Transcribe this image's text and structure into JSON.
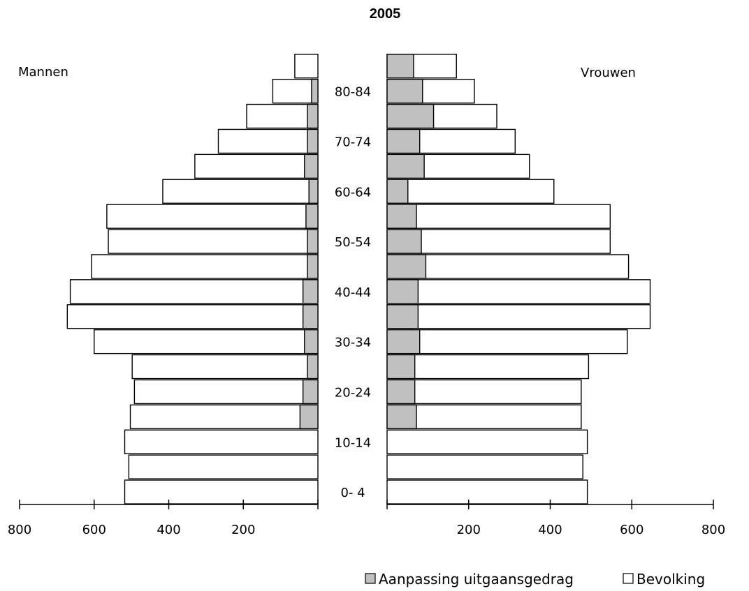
{
  "chart_data": {
    "type": "bar",
    "title": "2005",
    "left_label": "Mannen",
    "right_label": "Vrouwen",
    "age_groups": [
      "0- 4",
      "5-9",
      "10-14",
      "15-19",
      "20-24",
      "25-29",
      "30-34",
      "35-39",
      "40-44",
      "45-49",
      "50-54",
      "55-59",
      "60-64",
      "65-69",
      "70-74",
      "75-79",
      "80-84",
      "85+"
    ],
    "age_group_labels_shown": [
      "0- 4",
      "10-14",
      "20-24",
      "30-34",
      "40-44",
      "50-54",
      "60-64",
      "70-74",
      "80-84"
    ],
    "series": [
      {
        "name": "Bevolking",
        "color": "#ffffff",
        "men": [
          518,
          507,
          518,
          503,
          492,
          498,
          600,
          672,
          664,
          607,
          562,
          566,
          416,
          330,
          267,
          191,
          121,
          62
        ],
        "women": [
          491,
          480,
          491,
          476,
          476,
          494,
          589,
          645,
          645,
          592,
          547,
          547,
          409,
          349,
          314,
          269,
          214,
          170
        ]
      },
      {
        "name": "Aanpassing uitgaansgedrag",
        "color": "#c0c0c0",
        "men": [
          0,
          0,
          0,
          48,
          40,
          28,
          36,
          40,
          40,
          28,
          28,
          32,
          24,
          36,
          28,
          28,
          17,
          0
        ],
        "women": [
          0,
          0,
          0,
          72,
          68,
          68,
          80,
          76,
          76,
          95,
          84,
          72,
          51,
          91,
          80,
          114,
          87,
          65
        ]
      }
    ],
    "x_ticks_left": [
      "800",
      "600",
      "400",
      "200"
    ],
    "x_ticks_right": [
      "200",
      "400",
      "600",
      "800"
    ],
    "xlim": [
      0,
      800
    ],
    "grid": false,
    "legend_position": "bottom-right"
  }
}
